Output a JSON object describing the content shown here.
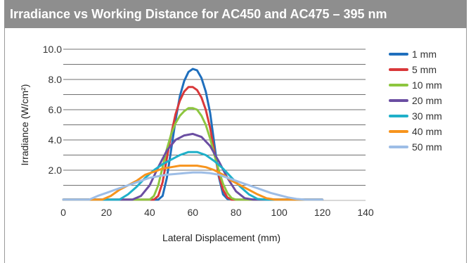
{
  "chart_data": {
    "type": "line",
    "title": "Irradiance vs Working Distance for AC450 and AC475 – 395 nm",
    "xlabel": "Lateral Displacement (mm)",
    "ylabel": "Irradiance (W/cm²)",
    "xlim": [
      0,
      140
    ],
    "ylim": [
      0,
      10
    ],
    "x_ticks": [
      "0",
      "20",
      "40",
      "60",
      "80",
      "100",
      "120",
      "140"
    ],
    "y_ticks": [
      "2.0",
      "4.0",
      "6.0",
      "8.0",
      "10.0"
    ],
    "grid": true,
    "legend_position": "right",
    "series": [
      {
        "name": "1 mm",
        "color": "#1f6fbd",
        "points": [
          [
            0,
            0.05
          ],
          [
            44,
            0.05
          ],
          [
            46,
            0.3
          ],
          [
            48,
            1.5
          ],
          [
            50,
            3.4
          ],
          [
            52,
            5.3
          ],
          [
            54,
            6.9
          ],
          [
            56,
            7.9
          ],
          [
            58,
            8.5
          ],
          [
            60,
            8.7
          ],
          [
            62,
            8.6
          ],
          [
            64,
            8.1
          ],
          [
            66,
            7.2
          ],
          [
            68,
            5.8
          ],
          [
            70,
            3.7
          ],
          [
            72,
            1.6
          ],
          [
            74,
            0.4
          ],
          [
            76,
            0.1
          ],
          [
            80,
            0.05
          ],
          [
            120,
            0.05
          ]
        ]
      },
      {
        "name": "5 mm",
        "color": "#d9383a",
        "points": [
          [
            0,
            0.05
          ],
          [
            42,
            0.05
          ],
          [
            44,
            0.3
          ],
          [
            46,
            1.2
          ],
          [
            48,
            2.8
          ],
          [
            50,
            4.4
          ],
          [
            52,
            5.7
          ],
          [
            54,
            6.6
          ],
          [
            56,
            7.2
          ],
          [
            58,
            7.5
          ],
          [
            60,
            7.5
          ],
          [
            62,
            7.3
          ],
          [
            64,
            6.8
          ],
          [
            66,
            6.0
          ],
          [
            68,
            4.8
          ],
          [
            70,
            3.2
          ],
          [
            72,
            1.7
          ],
          [
            74,
            0.7
          ],
          [
            76,
            0.2
          ],
          [
            78,
            0.05
          ],
          [
            120,
            0.05
          ]
        ]
      },
      {
        "name": "10 mm",
        "color": "#8dc63f",
        "points": [
          [
            0,
            0.05
          ],
          [
            40,
            0.05
          ],
          [
            42,
            0.3
          ],
          [
            44,
            1.0
          ],
          [
            46,
            2.2
          ],
          [
            48,
            3.4
          ],
          [
            50,
            4.4
          ],
          [
            52,
            5.1
          ],
          [
            54,
            5.6
          ],
          [
            56,
            5.9
          ],
          [
            58,
            6.1
          ],
          [
            60,
            6.1
          ],
          [
            62,
            6.0
          ],
          [
            64,
            5.6
          ],
          [
            66,
            5.0
          ],
          [
            68,
            4.1
          ],
          [
            70,
            3.0
          ],
          [
            72,
            2.0
          ],
          [
            74,
            1.1
          ],
          [
            76,
            0.5
          ],
          [
            78,
            0.15
          ],
          [
            80,
            0.05
          ],
          [
            120,
            0.05
          ]
        ]
      },
      {
        "name": "20 mm",
        "color": "#6b4ea2",
        "points": [
          [
            0,
            0.05
          ],
          [
            32,
            0.05
          ],
          [
            36,
            0.3
          ],
          [
            40,
            1.0
          ],
          [
            44,
            2.2
          ],
          [
            48,
            3.3
          ],
          [
            52,
            4.0
          ],
          [
            56,
            4.3
          ],
          [
            60,
            4.4
          ],
          [
            64,
            4.2
          ],
          [
            68,
            3.6
          ],
          [
            72,
            2.6
          ],
          [
            76,
            1.5
          ],
          [
            80,
            0.6
          ],
          [
            84,
            0.15
          ],
          [
            88,
            0.05
          ],
          [
            120,
            0.05
          ]
        ]
      },
      {
        "name": "30 mm",
        "color": "#1fb0c9",
        "points": [
          [
            0,
            0.05
          ],
          [
            26,
            0.05
          ],
          [
            30,
            0.4
          ],
          [
            34,
            0.9
          ],
          [
            38,
            1.5
          ],
          [
            42,
            2.0
          ],
          [
            46,
            2.4
          ],
          [
            50,
            2.7
          ],
          [
            54,
            3.0
          ],
          [
            58,
            3.2
          ],
          [
            60,
            3.2
          ],
          [
            62,
            3.2
          ],
          [
            66,
            3.0
          ],
          [
            70,
            2.6
          ],
          [
            74,
            2.1
          ],
          [
            78,
            1.5
          ],
          [
            82,
            0.9
          ],
          [
            86,
            0.4
          ],
          [
            90,
            0.1
          ],
          [
            94,
            0.05
          ],
          [
            120,
            0.05
          ]
        ]
      },
      {
        "name": "40 mm",
        "color": "#f7941d",
        "points": [
          [
            0,
            0.05
          ],
          [
            18,
            0.05
          ],
          [
            22,
            0.3
          ],
          [
            26,
            0.7
          ],
          [
            30,
            1.0
          ],
          [
            34,
            1.3
          ],
          [
            38,
            1.7
          ],
          [
            42,
            1.9
          ],
          [
            46,
            2.1
          ],
          [
            50,
            2.2
          ],
          [
            54,
            2.3
          ],
          [
            58,
            2.3
          ],
          [
            62,
            2.3
          ],
          [
            66,
            2.2
          ],
          [
            70,
            2.0
          ],
          [
            74,
            1.7
          ],
          [
            78,
            1.3
          ],
          [
            82,
            1.0
          ],
          [
            86,
            0.7
          ],
          [
            90,
            0.4
          ],
          [
            94,
            0.15
          ],
          [
            98,
            0.05
          ],
          [
            120,
            0.05
          ]
        ]
      },
      {
        "name": "50 mm",
        "color": "#9dbde6",
        "points": [
          [
            0,
            0.05
          ],
          [
            12,
            0.05
          ],
          [
            16,
            0.3
          ],
          [
            20,
            0.5
          ],
          [
            24,
            0.7
          ],
          [
            28,
            0.9
          ],
          [
            32,
            1.1
          ],
          [
            36,
            1.3
          ],
          [
            40,
            1.5
          ],
          [
            44,
            1.6
          ],
          [
            48,
            1.7
          ],
          [
            52,
            1.75
          ],
          [
            56,
            1.8
          ],
          [
            60,
            1.85
          ],
          [
            64,
            1.85
          ],
          [
            68,
            1.8
          ],
          [
            72,
            1.7
          ],
          [
            76,
            1.5
          ],
          [
            80,
            1.3
          ],
          [
            84,
            1.1
          ],
          [
            88,
            0.9
          ],
          [
            92,
            0.7
          ],
          [
            96,
            0.5
          ],
          [
            100,
            0.35
          ],
          [
            104,
            0.2
          ],
          [
            108,
            0.1
          ],
          [
            112,
            0.05
          ],
          [
            120,
            0.05
          ]
        ]
      }
    ]
  }
}
